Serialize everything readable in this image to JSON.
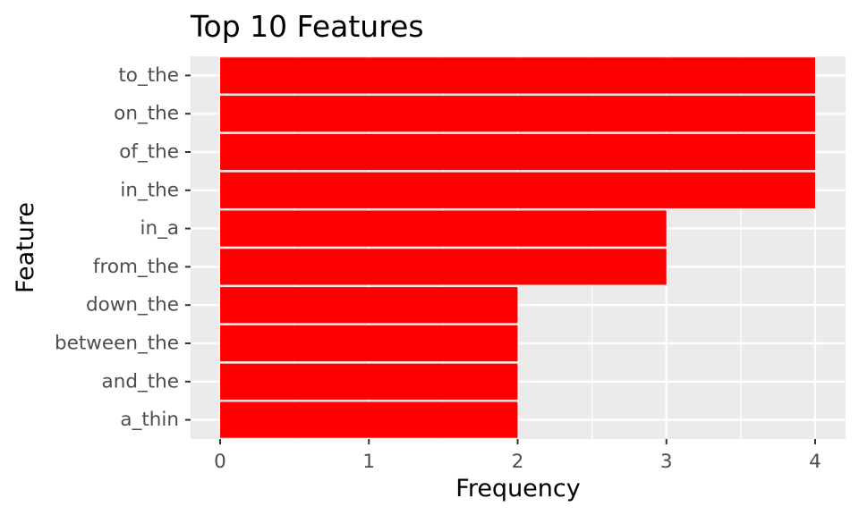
{
  "chart_data": {
    "type": "bar",
    "orientation": "horizontal",
    "title": "Top 10 Features",
    "xlabel": "Frequency",
    "ylabel": "Feature",
    "categories": [
      "to_the",
      "on_the",
      "of_the",
      "in_the",
      "in_a",
      "from_the",
      "down_the",
      "between_the",
      "and_the",
      "a_thin"
    ],
    "values": [
      4,
      4,
      4,
      4,
      3,
      3,
      2,
      2,
      2,
      2
    ],
    "xlim": [
      0,
      4
    ],
    "xticks": [
      "0",
      "1",
      "2",
      "3",
      "4"
    ],
    "grid": true,
    "legend": "none",
    "colors": {
      "bar": "#ff0000",
      "panel_background": "#ebebeb",
      "grid_line": "#ffffff",
      "tick_label": "#4d4d4d",
      "tick_mark": "#333333",
      "text": "#000000"
    }
  }
}
